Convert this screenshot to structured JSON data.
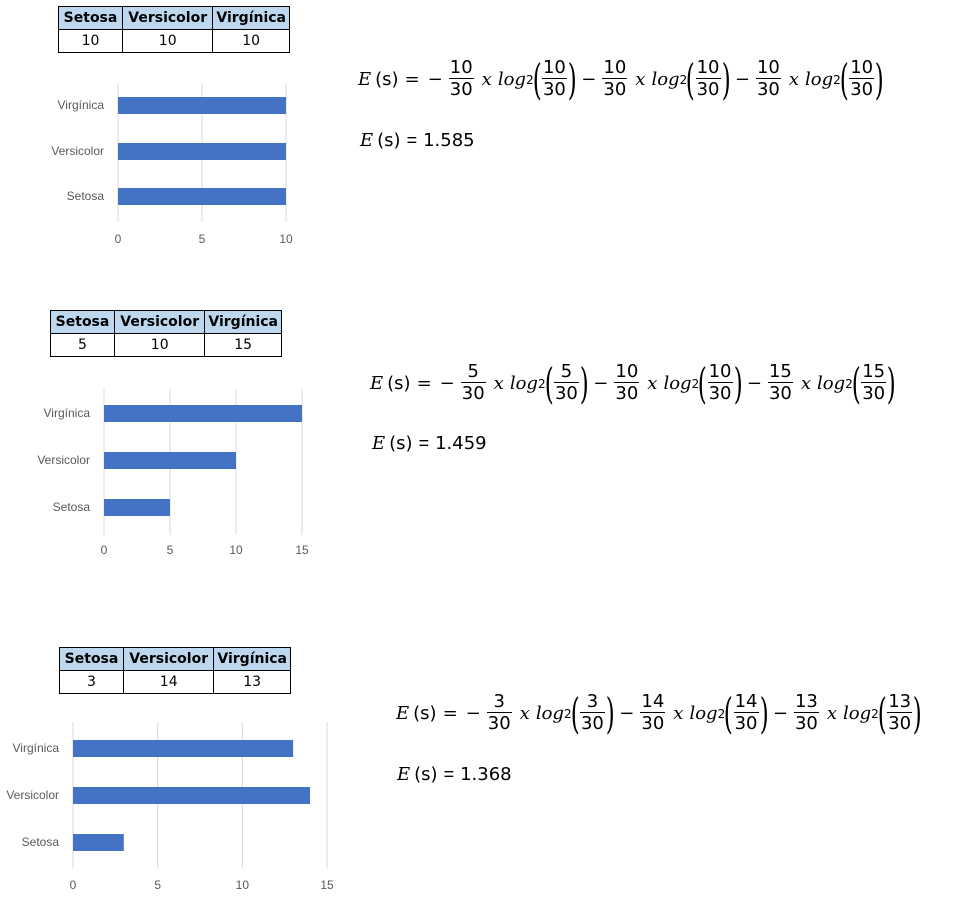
{
  "chart_data": [
    {
      "type": "bar",
      "orientation": "horizontal",
      "categories": [
        "Setosa",
        "Versicolor",
        "Virgínica"
      ],
      "values": [
        10,
        10,
        10
      ],
      "xticks": [
        "0",
        "5",
        "10"
      ],
      "xlim": [
        0,
        10
      ],
      "grid": true,
      "bar_color": "#4472c4",
      "table": {
        "headers": [
          "Setosa",
          "Versicolor",
          "Virgínica"
        ],
        "values": [
          "10",
          "10",
          "10"
        ]
      },
      "formula": {
        "lhs": "E",
        "arg": "(s)",
        "terms": [
          {
            "num": "10",
            "den": "30",
            "x": "x",
            "log": "log",
            "base": "2"
          },
          {
            "num": "10",
            "den": "30",
            "x": "x",
            "log": "log",
            "base": "2"
          },
          {
            "num": "10",
            "den": "30",
            "x": "x",
            "log": "log",
            "base": "2"
          }
        ],
        "result": "1.585"
      }
    },
    {
      "type": "bar",
      "orientation": "horizontal",
      "categories": [
        "Setosa",
        "Versicolor",
        "Virgínica"
      ],
      "values": [
        5,
        10,
        15
      ],
      "xticks": [
        "0",
        "5",
        "10",
        "15"
      ],
      "xlim": [
        0,
        15
      ],
      "grid": true,
      "bar_color": "#4472c4",
      "table": {
        "headers": [
          "Setosa",
          "Versicolor",
          "Virgínica"
        ],
        "values": [
          "5",
          "10",
          "15"
        ]
      },
      "formula": {
        "lhs": "E",
        "arg": "(s)",
        "terms": [
          {
            "num": "5",
            "den": "30",
            "x": "x",
            "log": "log",
            "base": "2"
          },
          {
            "num": "10",
            "den": "30",
            "x": "x",
            "log": "log",
            "base": "2"
          },
          {
            "num": "15",
            "den": "30",
            "x": "x",
            "log": "log",
            "base": "2"
          }
        ],
        "result": "1.459"
      }
    },
    {
      "type": "bar",
      "orientation": "horizontal",
      "categories": [
        "Setosa",
        "Versicolor",
        "Virgínica"
      ],
      "values": [
        3,
        14,
        13
      ],
      "xticks": [
        "0",
        "5",
        "10",
        "15"
      ],
      "xlim": [
        0,
        15
      ],
      "grid": true,
      "bar_color": "#4472c4",
      "table": {
        "headers": [
          "Setosa",
          "Versicolor",
          "Virgínica"
        ],
        "values": [
          "3",
          "14",
          "13"
        ]
      },
      "formula": {
        "lhs": "E",
        "arg": "(s)",
        "terms": [
          {
            "num": "3",
            "den": "30",
            "x": "x",
            "log": "log",
            "base": "2"
          },
          {
            "num": "14",
            "den": "30",
            "x": "x",
            "log": "log",
            "base": "2"
          },
          {
            "num": "13",
            "den": "30",
            "x": "x",
            "log": "log",
            "base": "2"
          }
        ],
        "result": "1.368"
      }
    }
  ]
}
